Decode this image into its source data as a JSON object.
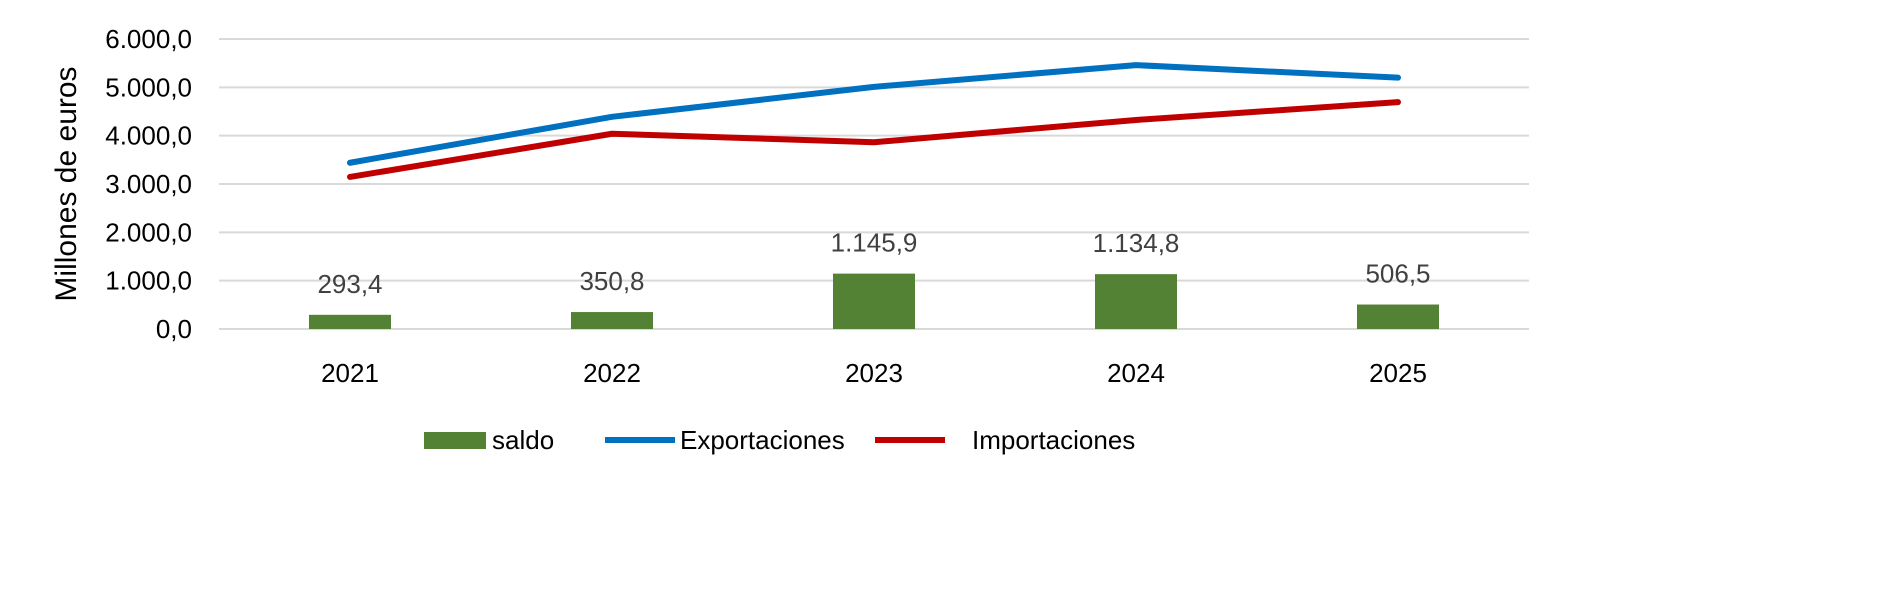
{
  "chart_data": {
    "type": "bar+line",
    "title": "",
    "xlabel": "",
    "ylabel": "Millones de euros",
    "ylim": [
      0,
      6000
    ],
    "yticks": [
      0,
      1000,
      2000,
      3000,
      4000,
      5000,
      6000
    ],
    "ytick_labels": [
      "0,0",
      "1.000,0",
      "2.000,0",
      "3.000,0",
      "4.000,0",
      "5.000,0",
      "6.000,0"
    ],
    "grid": true,
    "legend_position": "bottom",
    "categories": [
      "2021",
      "2022",
      "2023",
      "2024",
      "2025"
    ],
    "series": [
      {
        "name": "saldo",
        "type": "bar",
        "color": "#548235",
        "values": [
          293.4,
          350.8,
          1145.9,
          1134.8,
          506.5
        ],
        "labels": [
          "293,4",
          "350,8",
          "1.145,9",
          "1.134,8",
          "506,5"
        ]
      },
      {
        "name": "Exportaciones",
        "type": "line",
        "color": "#0070C0",
        "values": [
          3440,
          4390,
          5010,
          5460,
          5200
        ]
      },
      {
        "name": "Importaciones",
        "type": "line",
        "color": "#C00000",
        "values": [
          3146.6,
          4039.2,
          3864.1,
          4325.2,
          4693.5
        ]
      }
    ]
  }
}
